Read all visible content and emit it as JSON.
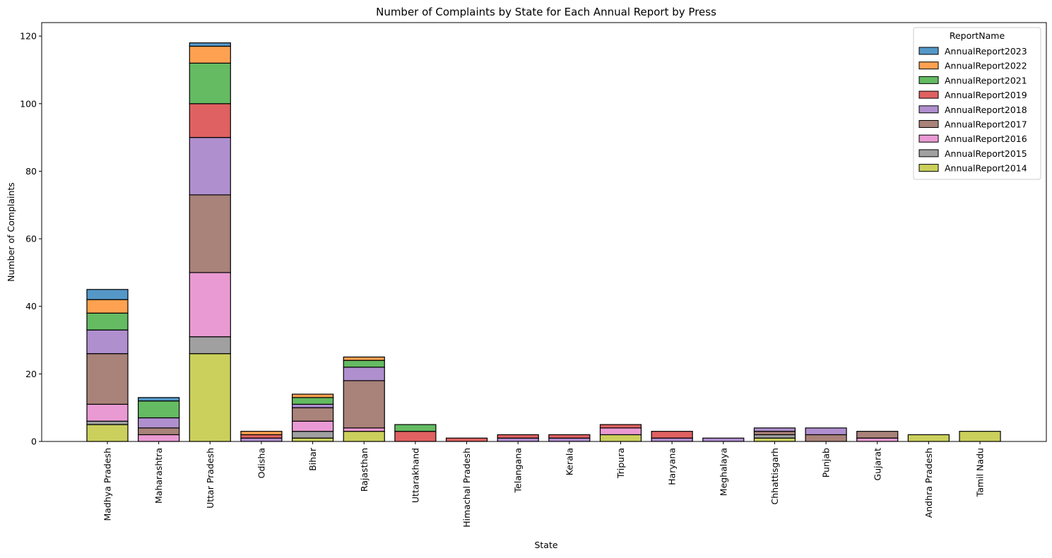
{
  "chart_data": {
    "type": "bar",
    "stacked": true,
    "title": "Number of Complaints by State for Each Annual Report by Press",
    "xlabel": "State",
    "ylabel": "Number of Complaints",
    "ylim": [
      0,
      124
    ],
    "yticks": [
      0,
      20,
      40,
      60,
      80,
      100,
      120
    ],
    "grid": false,
    "legend": {
      "title": "ReportName",
      "placement": "top-right"
    },
    "categories": [
      "Madhya Pradesh",
      "Maharashtra",
      "Uttar Pradesh",
      "Odisha",
      "Bihar",
      "Rajasthan",
      "Uttarakhand",
      "Himachal Pradesh",
      "Telangana",
      "Kerala",
      "Tripura",
      "Haryana",
      "Meghalaya",
      "Chhattisgarh",
      "Punjab",
      "Gujarat",
      "Andhra Pradesh",
      "Tamil Nadu"
    ],
    "series": [
      {
        "name": "AnnualReport2014",
        "color": "#cbd05c",
        "values": [
          5,
          0,
          26,
          0,
          1,
          3,
          0,
          0,
          0,
          0,
          2,
          0,
          0,
          1,
          0,
          0,
          2,
          3
        ]
      },
      {
        "name": "AnnualReport2015",
        "color": "#a0a0a0",
        "values": [
          1,
          0,
          5,
          0,
          2,
          0,
          0,
          0,
          0,
          0,
          0,
          0,
          0,
          1,
          0,
          0,
          0,
          0
        ]
      },
      {
        "name": "AnnualReport2016",
        "color": "#ea9ad3",
        "values": [
          5,
          2,
          19,
          0,
          3,
          1,
          0,
          0,
          0,
          0,
          2,
          0,
          0,
          0,
          0,
          1,
          0,
          0
        ]
      },
      {
        "name": "AnnualReport2017",
        "color": "#a98279",
        "values": [
          15,
          2,
          23,
          0,
          4,
          14,
          0,
          0,
          0,
          0,
          0,
          0,
          0,
          1,
          2,
          2,
          0,
          0
        ]
      },
      {
        "name": "AnnualReport2018",
        "color": "#b08fcf",
        "values": [
          7,
          3,
          17,
          1,
          1,
          4,
          0,
          0,
          1,
          1,
          0,
          1,
          1,
          1,
          2,
          0,
          0,
          0
        ]
      },
      {
        "name": "AnnualReport2019",
        "color": "#e06161",
        "values": [
          0,
          0,
          10,
          1,
          0,
          0,
          3,
          1,
          1,
          1,
          1,
          2,
          0,
          0,
          0,
          0,
          0,
          0
        ]
      },
      {
        "name": "AnnualReport2021",
        "color": "#64bb62",
        "values": [
          5,
          5,
          12,
          0,
          2,
          2,
          2,
          0,
          0,
          0,
          0,
          0,
          0,
          0,
          0,
          0,
          0,
          0
        ]
      },
      {
        "name": "AnnualReport2022",
        "color": "#fea150",
        "values": [
          4,
          0,
          5,
          1,
          1,
          1,
          0,
          0,
          0,
          0,
          0,
          0,
          0,
          0,
          0,
          0,
          0,
          0
        ]
      },
      {
        "name": "AnnualReport2023",
        "color": "#5598c8",
        "values": [
          3,
          1,
          1,
          0,
          0,
          0,
          0,
          0,
          0,
          0,
          0,
          0,
          0,
          0,
          0,
          0,
          0,
          0
        ]
      }
    ],
    "legend_order": [
      "AnnualReport2023",
      "AnnualReport2022",
      "AnnualReport2021",
      "AnnualReport2019",
      "AnnualReport2018",
      "AnnualReport2017",
      "AnnualReport2016",
      "AnnualReport2015",
      "AnnualReport2014"
    ]
  }
}
